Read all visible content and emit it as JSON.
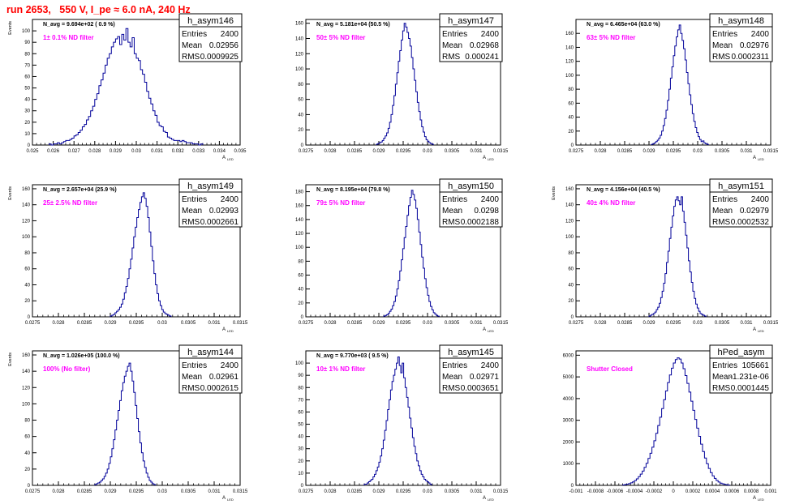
{
  "header": {
    "title": "run 2653,   550 V, I_pe ≈ 6.0 nA, 240 Hz"
  },
  "colors": {
    "title": "#ff0000",
    "histogram": "#000099",
    "annotation": "#ff00ff",
    "axis": "#000000"
  },
  "chart_data": [
    {
      "type": "histogram",
      "name": "h_asym146",
      "stats": {
        "entries_label": "Entries",
        "entries": "2400",
        "mean_label": "Mean",
        "mean": "0.02956",
        "rms_label": "RMS",
        "rms": "0.0009925"
      },
      "navg": "N_avg = 9.694e+02 ( 0.9 %)",
      "filter": "1± 0.1% ND filter",
      "ylabel": "Events",
      "xlabel": "A",
      "xlabel_sub": "LED",
      "xlim": [
        0.025,
        0.035
      ],
      "ylim": [
        0,
        110
      ],
      "yticks": [
        "0",
        "10",
        "20",
        "30",
        "40",
        "50",
        "60",
        "70",
        "80",
        "90",
        "100"
      ],
      "ytick_values": [
        0,
        10,
        20,
        30,
        40,
        50,
        60,
        70,
        80,
        90,
        100
      ],
      "xticks": [
        "0.025",
        "0.026",
        "0.027",
        "0.028",
        "0.029",
        "0.03",
        "0.031",
        "0.032",
        "0.033",
        "0.034",
        "0.035"
      ],
      "xtick_values": [
        0.025,
        0.026,
        0.027,
        0.028,
        0.029,
        0.03,
        0.031,
        0.032,
        0.033,
        0.034,
        0.035
      ],
      "bin_start": 0.0258,
      "bin_width": 0.0001,
      "values": [
        1,
        0,
        1,
        1,
        2,
        1,
        2,
        3,
        4,
        4,
        5,
        6,
        8,
        9,
        11,
        13,
        16,
        18,
        22,
        25,
        30,
        34,
        40,
        45,
        52,
        57,
        63,
        70,
        76,
        80,
        86,
        90,
        93,
        95,
        88,
        97,
        92,
        102,
        90,
        86,
        94,
        80,
        76,
        74,
        66,
        62,
        55,
        47,
        41,
        36,
        30,
        26,
        20,
        17,
        16,
        12,
        11,
        7,
        6,
        5,
        4,
        4,
        4,
        3,
        4,
        3,
        2,
        2,
        2,
        1,
        1,
        1,
        0,
        1
      ]
    },
    {
      "type": "histogram",
      "name": "h_asym147",
      "stats": {
        "entries_label": "Entries",
        "entries": "2400",
        "mean_label": "Mean",
        "mean": "0.02968",
        "rms_label": "RMS",
        "rms": "0.000241"
      },
      "navg": "N_avg = 5.181e+04 (50.5 %)",
      "filter": "50± 5% ND filter",
      "ylabel": "",
      "xlabel": "A",
      "xlabel_sub": "LED",
      "xlim": [
        0.0275,
        0.0315
      ],
      "ylim": [
        0,
        165
      ],
      "yticks": [
        "0",
        "20",
        "40",
        "60",
        "80",
        "100",
        "120",
        "140",
        "160"
      ],
      "ytick_values": [
        0,
        20,
        40,
        60,
        80,
        100,
        120,
        140,
        160
      ],
      "xticks": [
        "0.0275",
        "0.028",
        "0.0285",
        "0.029",
        "0.0295",
        "0.03",
        "0.0305",
        "0.031",
        "0.0315"
      ],
      "xtick_values": [
        0.0275,
        0.028,
        0.0285,
        0.029,
        0.0295,
        0.03,
        0.0305,
        0.031,
        0.0315
      ],
      "bin_start": 0.02895,
      "bin_width": 3e-05,
      "values": [
        1,
        2,
        3,
        4,
        6,
        9,
        12,
        16,
        22,
        30,
        40,
        52,
        65,
        80,
        95,
        110,
        124,
        138,
        150,
        160,
        155,
        148,
        140,
        130,
        115,
        100,
        85,
        70,
        56,
        44,
        33,
        24,
        17,
        11,
        7,
        5,
        3,
        2,
        1
      ]
    },
    {
      "type": "histogram",
      "name": "h_asym148",
      "stats": {
        "entries_label": "Entries",
        "entries": "2400",
        "mean_label": "Mean",
        "mean": "0.02976",
        "rms_label": "RMS",
        "rms": "0.0002311"
      },
      "navg": "N_avg = 6.465e+04 (63.0 %)",
      "filter": "63± 5% ND filter",
      "ylabel": "",
      "xlabel": "A",
      "xlabel_sub": "LED",
      "xlim": [
        0.0275,
        0.0315
      ],
      "ylim": [
        0,
        180
      ],
      "yticks": [
        "0",
        "20",
        "40",
        "60",
        "80",
        "100",
        "120",
        "140",
        "160"
      ],
      "ytick_values": [
        0,
        20,
        40,
        60,
        80,
        100,
        120,
        140,
        160
      ],
      "xticks": [
        "0.0275",
        "0.028",
        "0.0285",
        "0.029",
        "0.0295",
        "0.03",
        "0.0305",
        "0.031",
        "0.0315"
      ],
      "xtick_values": [
        0.0275,
        0.028,
        0.0285,
        0.029,
        0.0295,
        0.03,
        0.0305,
        0.031,
        0.0315
      ],
      "bin_start": 0.02905,
      "bin_width": 3e-05,
      "values": [
        1,
        2,
        3,
        5,
        7,
        10,
        14,
        20,
        28,
        38,
        50,
        64,
        80,
        96,
        112,
        128,
        142,
        155,
        165,
        172,
        160,
        150,
        138,
        122,
        104,
        88,
        72,
        58,
        45,
        34,
        25,
        18,
        12,
        8,
        5,
        6,
        3,
        2,
        1
      ]
    },
    {
      "type": "histogram",
      "name": "h_asym149",
      "stats": {
        "entries_label": "Entries",
        "entries": "2400",
        "mean_label": "Mean",
        "mean": "0.02993",
        "rms_label": "RMS",
        "rms": "0.0002661"
      },
      "navg": "N_avg = 2.657e+04 (25.9 %)",
      "filter": "25± 2.5% ND filter",
      "ylabel": "Events",
      "xlabel": "A",
      "xlabel_sub": "LED",
      "xlim": [
        0.0275,
        0.0315
      ],
      "ylim": [
        0,
        165
      ],
      "yticks": [
        "0",
        "20",
        "40",
        "60",
        "80",
        "100",
        "120",
        "140",
        "160"
      ],
      "ytick_values": [
        0,
        20,
        40,
        60,
        80,
        100,
        120,
        140,
        160
      ],
      "xticks": [
        "0.0275",
        "0.028",
        "0.0285",
        "0.029",
        "0.0295",
        "0.03",
        "0.0305",
        "0.031",
        "0.0315"
      ],
      "xtick_values": [
        0.0275,
        0.028,
        0.0285,
        0.029,
        0.0295,
        0.03,
        0.0305,
        0.031,
        0.0315
      ],
      "bin_start": 0.029,
      "bin_width": 3e-05,
      "values": [
        1,
        2,
        3,
        5,
        7,
        9,
        12,
        16,
        22,
        30,
        38,
        48,
        60,
        72,
        86,
        100,
        112,
        124,
        134,
        143,
        150,
        155,
        148,
        138,
        124,
        106,
        88,
        70,
        54,
        40,
        29,
        20,
        14,
        9,
        6,
        4,
        3,
        2,
        1
      ]
    },
    {
      "type": "histogram",
      "name": "h_asym150",
      "stats": {
        "entries_label": "Entries",
        "entries": "2400",
        "mean_label": "Mean",
        "mean": "0.0298",
        "rms_label": "RMS",
        "rms": "0.0002188"
      },
      "navg": "N_avg = 8.195e+04 (79.8 %)",
      "filter": "79± 5% ND filter",
      "ylabel": "",
      "xlabel": "A",
      "xlabel_sub": "LED",
      "xlim": [
        0.0275,
        0.0315
      ],
      "ylim": [
        0,
        190
      ],
      "yticks": [
        "0",
        "20",
        "40",
        "60",
        "80",
        "100",
        "120",
        "140",
        "160",
        "180"
      ],
      "ytick_values": [
        0,
        20,
        40,
        60,
        80,
        100,
        120,
        140,
        160,
        180
      ],
      "xticks": [
        "0.0275",
        "0.028",
        "0.0285",
        "0.029",
        "0.0295",
        "0.03",
        "0.0305",
        "0.031",
        "0.0315"
      ],
      "xtick_values": [
        0.0275,
        0.028,
        0.0285,
        0.029,
        0.0295,
        0.03,
        0.0305,
        0.031,
        0.0315
      ],
      "bin_start": 0.0291,
      "bin_width": 3e-05,
      "values": [
        1,
        2,
        3,
        5,
        8,
        11,
        16,
        22,
        30,
        40,
        52,
        66,
        82,
        98,
        114,
        130,
        146,
        160,
        172,
        182,
        176,
        168,
        156,
        140,
        122,
        104,
        86,
        70,
        55,
        42,
        31,
        22,
        15,
        10,
        6,
        4,
        2,
        1
      ]
    },
    {
      "type": "histogram",
      "name": "h_asym151",
      "stats": {
        "entries_label": "Entries",
        "entries": "2400",
        "mean_label": "Mean",
        "mean": "0.02979",
        "rms_label": "RMS",
        "rms": "0.0002532"
      },
      "navg": "N_avg = 4.156e+04 (40.5 %)",
      "filter": "40± 4% ND filter",
      "ylabel": "Events",
      "xlabel": "A",
      "xlabel_sub": "LED",
      "xlim": [
        0.0275,
        0.0315
      ],
      "ylim": [
        0,
        165
      ],
      "yticks": [
        "0",
        "20",
        "40",
        "60",
        "80",
        "100",
        "120",
        "140",
        "160"
      ],
      "ytick_values": [
        0,
        20,
        40,
        60,
        80,
        100,
        120,
        140,
        160
      ],
      "xticks": [
        "0.0275",
        "0.028",
        "0.0285",
        "0.029",
        "0.0295",
        "0.03",
        "0.0305",
        "0.031",
        "0.0315"
      ],
      "xtick_values": [
        0.0275,
        0.028,
        0.0285,
        0.029,
        0.0295,
        0.03,
        0.0305,
        0.031,
        0.0315
      ],
      "bin_start": 0.029,
      "bin_width": 3e-05,
      "values": [
        1,
        2,
        3,
        4,
        6,
        9,
        12,
        17,
        24,
        32,
        42,
        54,
        68,
        82,
        98,
        112,
        126,
        138,
        146,
        150,
        145,
        140,
        150,
        132,
        118,
        102,
        86,
        70,
        56,
        43,
        32,
        23,
        16,
        11,
        7,
        4,
        3,
        2,
        1
      ]
    },
    {
      "type": "histogram",
      "name": "h_asym144",
      "stats": {
        "entries_label": "Entries",
        "entries": "2400",
        "mean_label": "Mean",
        "mean": "0.02961",
        "rms_label": "RMS",
        "rms": "0.0002615"
      },
      "navg": "N_avg = 1.026e+05 (100.0 %)",
      "filter": "100% (No filter)",
      "ylabel": "Events",
      "xlabel": "A",
      "xlabel_sub": "LED",
      "xlim": [
        0.0275,
        0.0315
      ],
      "ylim": [
        0,
        165
      ],
      "yticks": [
        "0",
        "20",
        "40",
        "60",
        "80",
        "100",
        "120",
        "140",
        "160"
      ],
      "ytick_values": [
        0,
        20,
        40,
        60,
        80,
        100,
        120,
        140,
        160
      ],
      "xticks": [
        "0.0275",
        "0.028",
        "0.0285",
        "0.029",
        "0.0295",
        "0.03",
        "0.0305",
        "0.031",
        "0.0315"
      ],
      "xtick_values": [
        0.0275,
        0.028,
        0.0285,
        0.029,
        0.0295,
        0.03,
        0.0305,
        0.031,
        0.0315
      ],
      "bin_start": 0.0287,
      "bin_width": 3e-05,
      "values": [
        1,
        2,
        3,
        4,
        6,
        8,
        11,
        15,
        20,
        27,
        35,
        45,
        56,
        68,
        80,
        92,
        104,
        116,
        126,
        134,
        140,
        146,
        150,
        140,
        128,
        114,
        98,
        82,
        66,
        52,
        40,
        30,
        22,
        15,
        10,
        6,
        4,
        2,
        1
      ]
    },
    {
      "type": "histogram",
      "name": "h_asym145",
      "stats": {
        "entries_label": "Entries",
        "entries": "2400",
        "mean_label": "Mean",
        "mean": "0.02971",
        "rms_label": "RMS",
        "rms": "0.0003651"
      },
      "navg": "N_avg = 9.770e+03 ( 9.5 %)",
      "filter": "10± 1% ND filter",
      "ylabel": "",
      "xlabel": "A",
      "xlabel_sub": "LED",
      "xlim": [
        0.0275,
        0.0315
      ],
      "ylim": [
        0,
        110
      ],
      "yticks": [
        "0",
        "10",
        "20",
        "30",
        "40",
        "50",
        "60",
        "70",
        "80",
        "90",
        "100"
      ],
      "ytick_values": [
        0,
        10,
        20,
        30,
        40,
        50,
        60,
        70,
        80,
        90,
        100
      ],
      "xticks": [
        "0.0275",
        "0.028",
        "0.0285",
        "0.029",
        "0.0295",
        "0.03",
        "0.0305",
        "0.031",
        "0.0315"
      ],
      "xtick_values": [
        0.0275,
        0.028,
        0.0285,
        0.029,
        0.0295,
        0.03,
        0.0305,
        0.031,
        0.0315
      ],
      "bin_start": 0.0287,
      "bin_width": 3e-05,
      "values": [
        1,
        1,
        2,
        3,
        4,
        5,
        7,
        9,
        12,
        15,
        19,
        24,
        30,
        37,
        45,
        53,
        62,
        70,
        78,
        85,
        90,
        95,
        100,
        105,
        98,
        92,
        100,
        88,
        80,
        72,
        64,
        55,
        47,
        39,
        32,
        26,
        20,
        16,
        12,
        9,
        7,
        5,
        4,
        3,
        2,
        1
      ]
    },
    {
      "type": "histogram",
      "name": "hPed_asym",
      "stats": {
        "entries_label": "Entries",
        "entries": "105661",
        "mean_label": "Mean",
        "mean": "-1.231e-06",
        "rms_label": "RMS",
        "rms": "0.0001445"
      },
      "navg": "",
      "filter": "Shutter Closed",
      "ylabel": "",
      "xlabel": "A",
      "xlabel_sub": "LED",
      "xlim": [
        -0.001,
        0.001
      ],
      "ylim": [
        0,
        6200
      ],
      "yticks": [
        "0",
        "1000",
        "2000",
        "3000",
        "4000",
        "5000",
        "6000"
      ],
      "ytick_values": [
        0,
        1000,
        2000,
        3000,
        4000,
        5000,
        6000
      ],
      "xticks": [
        "-0.001",
        "-0.0008",
        "-0.0006",
        "-0.0004",
        "-0.0002",
        "0",
        "0.0002",
        "0.0004",
        "0.0006",
        "0.0008",
        "0.001"
      ],
      "xtick_values": [
        -0.001,
        -0.0008,
        -0.0006,
        -0.0004,
        -0.0002,
        0,
        0.0002,
        0.0004,
        0.0006,
        0.0008,
        0.001
      ],
      "bin_start": -0.00052,
      "bin_width": 2e-05,
      "values": [
        20,
        35,
        55,
        80,
        115,
        160,
        220,
        300,
        400,
        520,
        660,
        830,
        1020,
        1240,
        1480,
        1760,
        2060,
        2400,
        2760,
        3140,
        3540,
        3950,
        4350,
        4740,
        5090,
        5400,
        5640,
        5800,
        5880,
        5820,
        5640,
        5380,
        5060,
        4700,
        4300,
        3880,
        3460,
        3040,
        2640,
        2260,
        1900,
        1560,
        1260,
        1000,
        780,
        590,
        440,
        320,
        225,
        155,
        105,
        70,
        45,
        28,
        16
      ]
    }
  ]
}
